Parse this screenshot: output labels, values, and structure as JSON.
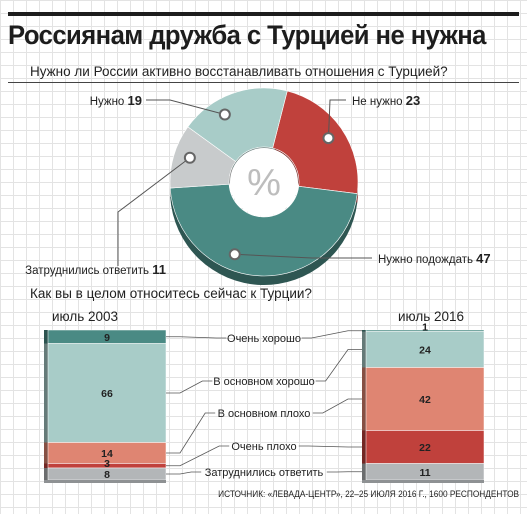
{
  "title": "Россиянам дружба с Турцией не нужна",
  "source": "ИСТОЧНИК: «ЛЕВАДА-ЦЕНТР», 22–25 ИЮЛЯ 2016 Г., 1600 РЕСПОНДЕНТОВ",
  "chart_data": [
    {
      "type": "pie",
      "title": "Нужно ли России активно восстанавливать отношения с Турцией?",
      "center_label": "%",
      "slices": [
        {
          "label": "Не нужно",
          "value": 23,
          "color": "#c0413c"
        },
        {
          "label": "Нужно подождать",
          "value": 47,
          "color": "#4a8a84"
        },
        {
          "label": "Затруднились ответить",
          "value": 11,
          "color": "#c8cbcc"
        },
        {
          "label": "Нужно",
          "value": 19,
          "color": "#a8ccc8"
        }
      ]
    },
    {
      "type": "bar",
      "stacked": true,
      "title": "Как вы в целом относитесь сейчас к Турции?",
      "categories": [
        "июль 2003",
        "июль 2016"
      ],
      "series": [
        {
          "name": "Очень хорошо",
          "values": [
            9,
            1
          ],
          "color": "#4a8a84"
        },
        {
          "name": "В основном хорошо",
          "values": [
            66,
            24
          ],
          "color": "#a8ccc8"
        },
        {
          "name": "В основном плохо",
          "values": [
            14,
            42
          ],
          "color": "#df8572"
        },
        {
          "name": "Очень плохо",
          "values": [
            3,
            22
          ],
          "color": "#c0413c"
        },
        {
          "name": "Затруднились ответить",
          "values": [
            8,
            11
          ],
          "color": "#b3b6b8"
        }
      ]
    }
  ]
}
